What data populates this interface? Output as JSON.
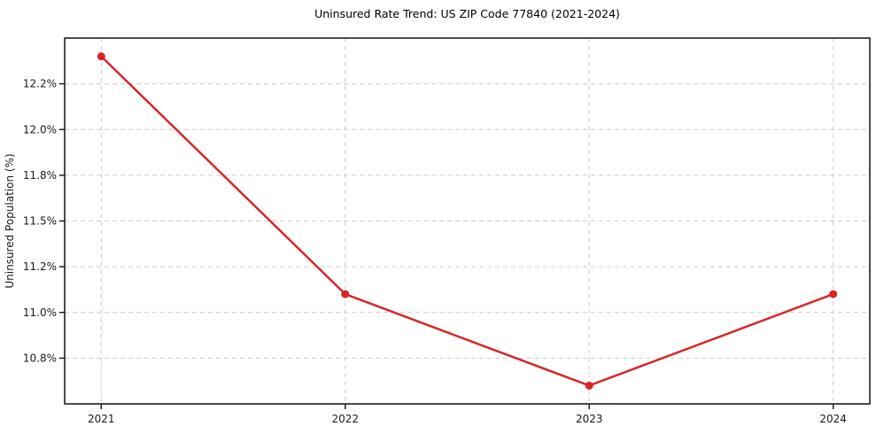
{
  "chart_data": {
    "type": "line",
    "title": "Uninsured Rate Trend: US ZIP Code 77840 (2021-2024)",
    "xlabel": "",
    "ylabel": "Uninsured Population (%)",
    "x": [
      2021,
      2022,
      2023,
      2024
    ],
    "x_tick_labels": [
      "2021",
      "2022",
      "2023",
      "2024"
    ],
    "values": [
      12.4,
      11.1,
      10.6,
      11.1
    ],
    "y_ticks": [
      12.25,
      12.0,
      11.75,
      11.5,
      11.25,
      11.0,
      10.75
    ],
    "y_tick_labels": [
      "12.2%",
      "12.0%",
      "11.8%",
      "11.5%",
      "11.2%",
      "11.0%",
      "10.8%"
    ],
    "xlim": [
      2020.85,
      2024.15
    ],
    "ylim": [
      10.5,
      12.5
    ],
    "grid": true,
    "grid_style": "dashed",
    "legend": "none",
    "colors": {
      "line": "#d62728",
      "marker": "#d62728",
      "grid": "#cccccc",
      "spine": "#1f1f1f",
      "tick_text": "#1a1a1a",
      "title_text": "#000000",
      "background": "#ffffff"
    }
  }
}
